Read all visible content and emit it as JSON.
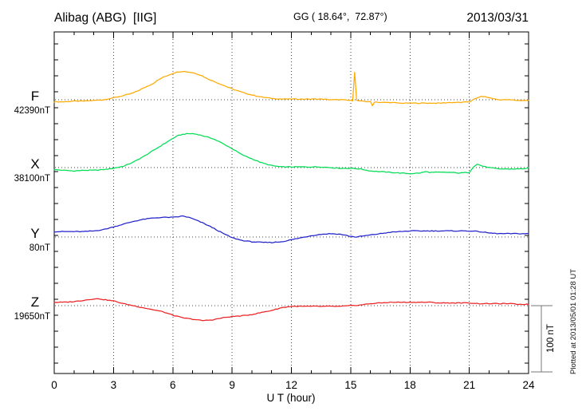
{
  "header": {
    "station": "Alibag (ABG)  [IIG]",
    "coordinates": "GG ( 18.64°,  72.87°)",
    "date": "2013/03/31"
  },
  "axis": {
    "xlabel": "U T (hour)"
  },
  "scale_bar": {
    "label": "100 nT"
  },
  "footer": {
    "plotted_note": "Plotted at 2013/05/01 01:28 UT"
  },
  "chart_data": {
    "type": "line",
    "title": "Alibag (ABG)  [IIG]",
    "subtitle": "GG ( 18.64°,  72.87°)",
    "date": "2013/03/31",
    "xlabel": "U T (hour)",
    "x_range": [
      0,
      24
    ],
    "x_ticks": [
      0,
      3,
      6,
      9,
      12,
      15,
      18,
      21,
      24
    ],
    "x_minor_tick_hours": 1,
    "grid": "dotted vertical lines every 3 h; dotted horizontal baseline per component",
    "legend_position": "left margin, one colored label per component",
    "scale_bar_nT": 100,
    "scale_bar_label": "100 nT",
    "plotted_note": "Plotted at 2013/05/01 01:28 UT",
    "value_unit": "nT (deviation from component baseline)",
    "series": [
      {
        "name": "F",
        "baseline_label": "42390nT",
        "baseline_nT": 42390,
        "color": "#ffaa00",
        "points_hour_dnT": [
          [
            0,
            -3
          ],
          [
            0.5,
            -3
          ],
          [
            1,
            -2
          ],
          [
            1.5,
            -2
          ],
          [
            2,
            -1
          ],
          [
            2.5,
            0
          ],
          [
            3,
            3
          ],
          [
            3.5,
            6
          ],
          [
            4,
            10
          ],
          [
            4.5,
            17
          ],
          [
            5,
            24
          ],
          [
            5.25,
            29
          ],
          [
            5.5,
            33
          ],
          [
            5.75,
            36
          ],
          [
            6,
            39
          ],
          [
            6.25,
            41
          ],
          [
            6.5,
            42
          ],
          [
            6.75,
            41
          ],
          [
            7,
            40
          ],
          [
            7.25,
            38
          ],
          [
            7.5,
            35
          ],
          [
            7.75,
            31
          ],
          [
            8,
            28
          ],
          [
            8.5,
            22
          ],
          [
            9,
            16
          ],
          [
            9.5,
            11
          ],
          [
            10,
            7
          ],
          [
            10.5,
            4
          ],
          [
            11,
            2
          ],
          [
            11.5,
            1
          ],
          [
            12,
            1
          ],
          [
            12.5,
            1
          ],
          [
            13,
            1
          ],
          [
            13.5,
            1
          ],
          [
            14,
            0
          ],
          [
            14.5,
            0
          ],
          [
            15,
            -1
          ],
          [
            15.1,
            -1
          ],
          [
            15.2,
            41
          ],
          [
            15.3,
            -1
          ],
          [
            15.5,
            -2
          ],
          [
            16,
            -3
          ],
          [
            16.1,
            -9
          ],
          [
            16.2,
            -3
          ],
          [
            16.5,
            -4
          ],
          [
            17,
            -4
          ],
          [
            17.5,
            -5
          ],
          [
            18,
            -5
          ],
          [
            18.5,
            -5
          ],
          [
            19,
            -5
          ],
          [
            19.5,
            -5
          ],
          [
            20,
            -4
          ],
          [
            20.5,
            -4
          ],
          [
            21,
            -3
          ],
          [
            21.2,
            0
          ],
          [
            21.5,
            4
          ],
          [
            21.7,
            5
          ],
          [
            22,
            3
          ],
          [
            22.3,
            1
          ],
          [
            22.5,
            0
          ],
          [
            23,
            0
          ],
          [
            23.5,
            -1
          ],
          [
            24,
            -1
          ]
        ]
      },
      {
        "name": "X",
        "baseline_label": "38100nT",
        "baseline_nT": 38100,
        "color": "#00dd55",
        "points_hour_dnT": [
          [
            0,
            -3
          ],
          [
            0.5,
            -4
          ],
          [
            1,
            -5
          ],
          [
            1.5,
            -4
          ],
          [
            2,
            -4
          ],
          [
            2.5,
            -3
          ],
          [
            3,
            -1
          ],
          [
            3.5,
            2
          ],
          [
            4,
            8
          ],
          [
            4.5,
            16
          ],
          [
            5,
            25
          ],
          [
            5.5,
            34
          ],
          [
            6,
            43
          ],
          [
            6.25,
            47
          ],
          [
            6.5,
            49
          ],
          [
            6.75,
            50
          ],
          [
            7,
            50
          ],
          [
            7.25,
            49
          ],
          [
            7.5,
            47
          ],
          [
            8,
            43
          ],
          [
            8.5,
            36
          ],
          [
            9,
            28
          ],
          [
            9.5,
            19
          ],
          [
            10,
            13
          ],
          [
            10.5,
            7
          ],
          [
            11,
            3
          ],
          [
            11.5,
            1
          ],
          [
            12,
            1
          ],
          [
            12.5,
            1
          ],
          [
            13,
            1
          ],
          [
            13.5,
            1
          ],
          [
            14,
            0
          ],
          [
            14.5,
            -1
          ],
          [
            15,
            -1
          ],
          [
            15.5,
            -2
          ],
          [
            16,
            -5
          ],
          [
            16.5,
            -6
          ],
          [
            17,
            -7
          ],
          [
            17.5,
            -8
          ],
          [
            18,
            -9
          ],
          [
            18.5,
            -8
          ],
          [
            18.8,
            -6
          ],
          [
            19,
            -7
          ],
          [
            19.5,
            -7
          ],
          [
            20,
            -7
          ],
          [
            20.5,
            -8
          ],
          [
            21,
            -7
          ],
          [
            21.2,
            1
          ],
          [
            21.4,
            5
          ],
          [
            21.7,
            2
          ],
          [
            22,
            0
          ],
          [
            22.5,
            -2
          ],
          [
            23,
            -2
          ],
          [
            23.5,
            -2
          ],
          [
            24,
            -1
          ]
        ]
      },
      {
        "name": "Y",
        "baseline_label": "80nT",
        "baseline_nT": 80,
        "color": "#2222cc",
        "points_hour_dnT": [
          [
            0,
            8
          ],
          [
            0.5,
            8
          ],
          [
            1,
            8
          ],
          [
            1.5,
            8
          ],
          [
            2,
            9
          ],
          [
            2.5,
            11
          ],
          [
            3,
            15
          ],
          [
            3.5,
            19
          ],
          [
            4,
            23
          ],
          [
            4.5,
            26
          ],
          [
            5,
            28
          ],
          [
            5.5,
            29
          ],
          [
            6,
            29
          ],
          [
            6.3,
            30
          ],
          [
            6.5,
            31
          ],
          [
            6.8,
            29
          ],
          [
            7,
            27
          ],
          [
            7.5,
            21
          ],
          [
            8,
            14
          ],
          [
            8.5,
            6
          ],
          [
            9,
            -1
          ],
          [
            9.5,
            -5
          ],
          [
            10,
            -7
          ],
          [
            10.5,
            -8
          ],
          [
            11,
            -8
          ],
          [
            11.5,
            -7
          ],
          [
            12,
            -4
          ],
          [
            12.5,
            -1
          ],
          [
            13,
            2
          ],
          [
            13.5,
            4
          ],
          [
            14,
            5
          ],
          [
            14.5,
            4
          ],
          [
            15,
            1
          ],
          [
            15.3,
            0
          ],
          [
            15.5,
            1
          ],
          [
            16,
            3
          ],
          [
            16.5,
            5
          ],
          [
            17,
            7
          ],
          [
            17.5,
            8
          ],
          [
            18,
            9
          ],
          [
            18.5,
            9
          ],
          [
            19,
            9
          ],
          [
            19.5,
            9
          ],
          [
            20,
            9
          ],
          [
            20.5,
            9
          ],
          [
            21,
            9
          ],
          [
            21.5,
            8
          ],
          [
            22,
            6
          ],
          [
            22.5,
            5
          ],
          [
            23,
            5
          ],
          [
            23.5,
            5
          ],
          [
            24,
            5
          ]
        ]
      },
      {
        "name": "Z",
        "baseline_label": "19650nT",
        "baseline_nT": 19650,
        "color": "#ee2222",
        "points_hour_dnT": [
          [
            0,
            5
          ],
          [
            0.5,
            5
          ],
          [
            1,
            6
          ],
          [
            1.5,
            8
          ],
          [
            2,
            10
          ],
          [
            2.3,
            10
          ],
          [
            2.5,
            9
          ],
          [
            3,
            7
          ],
          [
            3.5,
            3
          ],
          [
            4,
            0
          ],
          [
            4.5,
            -3
          ],
          [
            5,
            -6
          ],
          [
            5.5,
            -9
          ],
          [
            6,
            -14
          ],
          [
            6.5,
            -18
          ],
          [
            7,
            -20
          ],
          [
            7.5,
            -22
          ],
          [
            8,
            -21
          ],
          [
            8.5,
            -18
          ],
          [
            9,
            -16
          ],
          [
            9.5,
            -15
          ],
          [
            10,
            -13
          ],
          [
            10.5,
            -10
          ],
          [
            11,
            -7
          ],
          [
            11.5,
            -3
          ],
          [
            12,
            -1
          ],
          [
            12.5,
            -1
          ],
          [
            13,
            -1
          ],
          [
            13.5,
            -1
          ],
          [
            14,
            -1
          ],
          [
            14.5,
            -1
          ],
          [
            15,
            0
          ],
          [
            15.5,
            1
          ],
          [
            16,
            3
          ],
          [
            16.5,
            4
          ],
          [
            17,
            5
          ],
          [
            17.5,
            5
          ],
          [
            18,
            5
          ],
          [
            18.5,
            5
          ],
          [
            19,
            5
          ],
          [
            19.5,
            4
          ],
          [
            20,
            4
          ],
          [
            20.5,
            4
          ],
          [
            21,
            4
          ],
          [
            21.5,
            3
          ],
          [
            22,
            3
          ],
          [
            22.5,
            3
          ],
          [
            23,
            3
          ],
          [
            23.5,
            2
          ],
          [
            24,
            2
          ]
        ]
      }
    ]
  }
}
